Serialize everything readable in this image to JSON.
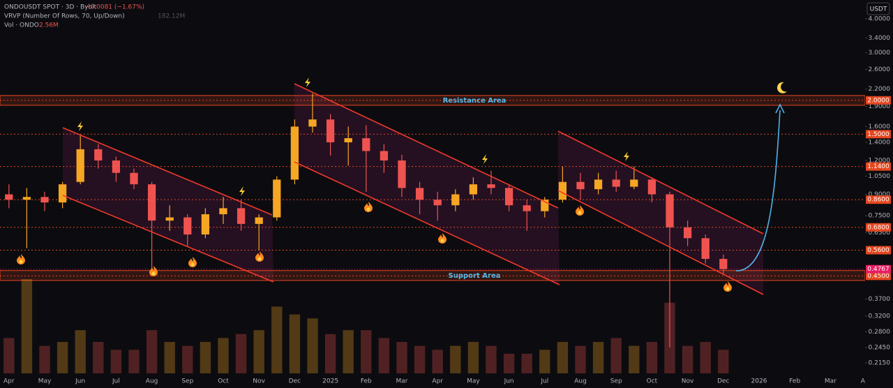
{
  "header": {
    "symbol": "ONDOUSDT SPOT · 3D · Bybit",
    "change": "−0.0081 (−1.67%)",
    "vrvp": "VRVP (Number Of Rows, 70, Up/Down)",
    "vrvp_value": "182.12M",
    "vol": "Vol · ONDO",
    "vol_value": "2.56M",
    "currency": "USDT"
  },
  "chart_data": {
    "type": "candlestick",
    "log_scale": true,
    "categories": [
      "Apr",
      null,
      "May",
      null,
      "Jun",
      null,
      "Jul",
      null,
      "Aug",
      null,
      "Sep",
      null,
      "Oct",
      null,
      "Nov",
      null,
      "Dec",
      null,
      "2025",
      null,
      "Feb",
      null,
      "Mar",
      null,
      "Apr",
      null,
      "May",
      null,
      "Jun",
      null,
      "Jul",
      null,
      "Aug",
      null,
      "Sep",
      null,
      "Oct",
      null,
      "Nov",
      null,
      "Dec",
      null,
      "2026",
      null,
      "Feb",
      null,
      "Mar",
      null,
      "Apr"
    ],
    "open": [
      0.9,
      0.86,
      0.88,
      0.84,
      1.0,
      1.32,
      1.2,
      1.08,
      0.98,
      0.72,
      0.74,
      0.64,
      0.76,
      0.8,
      0.7,
      0.74,
      1.02,
      1.6,
      1.7,
      1.4,
      1.45,
      1.3,
      1.2,
      0.95,
      0.86,
      0.82,
      0.9,
      0.98,
      0.95,
      0.82,
      0.78,
      0.86,
      1.0,
      0.94,
      1.02,
      0.96,
      1.02,
      0.9,
      0.68,
      0.62,
      0.52,
      null,
      null,
      null,
      null,
      null,
      null,
      null,
      null
    ],
    "high": [
      0.98,
      0.95,
      0.92,
      1.0,
      1.48,
      1.38,
      1.24,
      1.12,
      1.0,
      0.82,
      0.76,
      0.8,
      0.88,
      0.86,
      0.76,
      1.05,
      1.7,
      2.12,
      1.78,
      1.6,
      1.62,
      1.38,
      1.26,
      1.0,
      0.92,
      0.94,
      1.04,
      1.1,
      0.98,
      0.86,
      0.88,
      1.14,
      1.08,
      1.08,
      1.1,
      1.14,
      1.04,
      0.92,
      0.72,
      0.64,
      0.54,
      null,
      null,
      null,
      null,
      null,
      null,
      null,
      null
    ],
    "low": [
      0.8,
      0.57,
      0.78,
      0.8,
      0.98,
      1.12,
      1.0,
      0.94,
      0.48,
      0.66,
      0.58,
      0.62,
      0.7,
      0.66,
      0.56,
      0.72,
      0.98,
      1.52,
      1.25,
      1.15,
      0.92,
      1.08,
      0.88,
      0.76,
      0.72,
      0.78,
      0.86,
      0.9,
      0.78,
      0.66,
      0.74,
      0.84,
      0.86,
      0.9,
      0.92,
      0.94,
      0.84,
      0.245,
      0.58,
      0.5,
      0.455,
      null,
      null,
      null,
      null,
      null,
      null,
      null,
      null
    ],
    "close": [
      0.86,
      0.88,
      0.84,
      0.98,
      1.32,
      1.2,
      1.08,
      0.98,
      0.72,
      0.74,
      0.64,
      0.76,
      0.8,
      0.7,
      0.74,
      1.02,
      1.6,
      1.7,
      1.4,
      1.45,
      1.3,
      1.2,
      0.95,
      0.86,
      0.82,
      0.9,
      0.98,
      0.95,
      0.82,
      0.78,
      0.86,
      1.0,
      0.94,
      1.02,
      0.96,
      1.02,
      0.9,
      0.68,
      0.62,
      0.52,
      0.4767,
      null,
      null,
      null,
      null,
      null,
      null,
      null,
      null
    ],
    "volume": [
      45,
      120,
      35,
      40,
      55,
      40,
      30,
      30,
      55,
      40,
      35,
      40,
      45,
      50,
      55,
      85,
      75,
      70,
      50,
      55,
      55,
      45,
      40,
      35,
      30,
      35,
      40,
      35,
      25,
      25,
      30,
      40,
      35,
      40,
      45,
      35,
      40,
      90,
      35,
      40,
      30,
      null,
      null,
      null,
      null,
      null,
      null,
      null,
      null
    ],
    "up_color": "#f5a623",
    "down_color": "#ef5350",
    "ylim": [
      0.1737,
      4.69
    ],
    "yticks": [
      {
        "value": 4.0,
        "label": "4.0000"
      },
      {
        "value": 3.4,
        "label": "3.4000"
      },
      {
        "value": 3.0,
        "label": "3.0000"
      },
      {
        "value": 2.6,
        "label": "2.6000"
      },
      {
        "value": 2.2,
        "label": "2.2000"
      },
      {
        "value": 1.9,
        "label": "1.9000"
      },
      {
        "value": 1.6,
        "label": "1.6000"
      },
      {
        "value": 1.4,
        "label": "1.4000"
      },
      {
        "value": 1.2,
        "label": "1.2000"
      },
      {
        "value": 1.05,
        "label": "1.0500"
      },
      {
        "value": 0.9,
        "label": "0.9000"
      },
      {
        "value": 0.75,
        "label": "0.7500"
      },
      {
        "value": 0.65,
        "label": "0.6500"
      },
      {
        "value": 0.37,
        "label": "0.3700"
      },
      {
        "value": 0.32,
        "label": "0.3200"
      },
      {
        "value": 0.28,
        "label": "0.2800"
      },
      {
        "value": 0.245,
        "label": "0.2450"
      },
      {
        "value": 0.215,
        "label": "0.2150"
      }
    ],
    "levels": [
      {
        "value": 2.0,
        "label": "2.0000"
      },
      {
        "value": 1.5,
        "label": "1.5000"
      },
      {
        "value": 1.14,
        "label": "1.1400"
      },
      {
        "value": 0.86,
        "label": "0.8600"
      },
      {
        "value": 0.68,
        "label": "0.6800"
      },
      {
        "value": 0.56,
        "label": "0.5600"
      },
      {
        "value": 0.45,
        "label": "0.4500"
      }
    ],
    "level_color": "#e5461f",
    "last_price": {
      "value": 0.4767,
      "label": "0.4767"
    },
    "last_price_color": "#e91e63",
    "zones": [
      {
        "label": "Resistance Area",
        "range": [
          1.918,
          2.084
        ]
      },
      {
        "label": "Support Area",
        "range": [
          0.433,
          0.471
        ]
      }
    ],
    "zone_color": "#e5461f",
    "zone_label_color": "#4fc3f7"
  }
}
